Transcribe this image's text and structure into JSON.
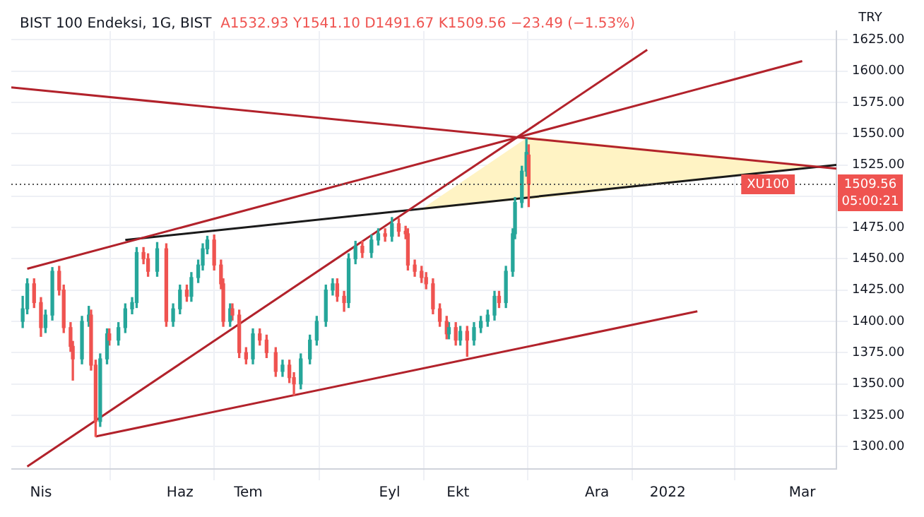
{
  "chart_data": {
    "type": "candlestick",
    "title": "BIST 100 Endeksi, 1G, BIST",
    "subtitle": "A1532.93 Y1541.10 D1491.67 K1509.56 −23.49 (−1.53%)",
    "x": [
      "2021-03-24",
      "2021-03-26",
      "2021-03-29",
      "2021-04-01",
      "2021-04-03",
      "2021-04-06",
      "2021-04-09",
      "2021-04-11",
      "2021-04-14",
      "2021-04-15",
      "2021-04-19",
      "2021-04-22",
      "2021-04-23",
      "2021-04-25",
      "2021-04-27",
      "2021-04-30",
      "2021-05-01",
      "2021-05-05",
      "2021-05-08",
      "2021-05-11",
      "2021-05-13",
      "2021-05-16",
      "2021-05-18",
      "2021-05-22",
      "2021-05-26",
      "2021-05-29",
      "2021-06-01",
      "2021-06-04",
      "2021-06-06",
      "2021-06-09",
      "2021-06-11",
      "2021-06-13",
      "2021-06-16",
      "2021-06-19",
      "2021-06-20",
      "2021-06-23",
      "2021-06-24",
      "2021-06-27",
      "2021-06-30",
      "2021-07-03",
      "2021-07-06",
      "2021-07-09",
      "2021-07-13",
      "2021-07-16",
      "2021-07-19",
      "2021-07-21",
      "2021-07-24",
      "2021-07-28",
      "2021-07-31",
      "2021-08-04",
      "2021-08-07",
      "2021-08-09",
      "2021-08-12",
      "2021-08-14",
      "2021-08-17",
      "2021-08-20",
      "2021-08-24",
      "2021-08-27",
      "2021-08-30",
      "2021-09-02",
      "2021-09-05",
      "2021-09-08",
      "2021-09-09",
      "2021-09-12",
      "2021-09-15",
      "2021-09-17",
      "2021-09-20",
      "2021-09-23",
      "2021-09-26",
      "2021-09-27",
      "2021-09-30",
      "2021-10-02",
      "2021-10-05",
      "2021-10-08",
      "2021-10-11",
      "2021-10-14",
      "2021-10-17",
      "2021-10-19",
      "2021-10-22",
      "2021-10-25",
      "2021-10-26",
      "2021-10-29",
      "2021-10-31",
      "2021-11-01"
    ],
    "ohlc": [
      [
        1400,
        1420,
        1395,
        1410
      ],
      [
        1410,
        1434,
        1406,
        1430
      ],
      [
        1430,
        1434,
        1411,
        1415
      ],
      [
        1415,
        1419,
        1388,
        1395
      ],
      [
        1395,
        1409,
        1391,
        1405
      ],
      [
        1405,
        1443,
        1401,
        1440
      ],
      [
        1440,
        1444,
        1421,
        1425
      ],
      [
        1425,
        1429,
        1391,
        1395
      ],
      [
        1395,
        1399,
        1376,
        1380
      ],
      [
        1380,
        1384,
        1353,
        1370
      ],
      [
        1370,
        1404,
        1366,
        1400
      ],
      [
        1400,
        1412,
        1396,
        1405
      ],
      [
        1405,
        1409,
        1361,
        1365
      ],
      [
        1365,
        1369,
        1308,
        1320
      ],
      [
        1320,
        1374,
        1316,
        1370
      ],
      [
        1370,
        1394,
        1366,
        1390
      ],
      [
        1390,
        1394,
        1381,
        1385
      ],
      [
        1385,
        1399,
        1381,
        1395
      ],
      [
        1395,
        1414,
        1391,
        1410
      ],
      [
        1410,
        1419,
        1406,
        1415
      ],
      [
        1415,
        1459,
        1411,
        1455
      ],
      [
        1455,
        1459,
        1446,
        1450
      ],
      [
        1450,
        1454,
        1436,
        1440
      ],
      [
        1440,
        1463,
        1436,
        1458
      ],
      [
        1458,
        1462,
        1396,
        1400
      ],
      [
        1400,
        1414,
        1396,
        1410
      ],
      [
        1410,
        1429,
        1406,
        1425
      ],
      [
        1425,
        1429,
        1416,
        1420
      ],
      [
        1420,
        1439,
        1416,
        1435
      ],
      [
        1435,
        1449,
        1431,
        1445
      ],
      [
        1445,
        1462,
        1441,
        1458
      ],
      [
        1458,
        1468,
        1454,
        1465
      ],
      [
        1465,
        1469,
        1441,
        1445
      ],
      [
        1445,
        1449,
        1426,
        1430
      ],
      [
        1430,
        1434,
        1396,
        1400
      ],
      [
        1400,
        1414,
        1396,
        1410
      ],
      [
        1410,
        1414,
        1401,
        1405
      ],
      [
        1405,
        1409,
        1371,
        1375
      ],
      [
        1375,
        1379,
        1366,
        1370
      ],
      [
        1370,
        1394,
        1366,
        1390
      ],
      [
        1390,
        1394,
        1381,
        1385
      ],
      [
        1385,
        1389,
        1371,
        1375
      ],
      [
        1375,
        1379,
        1356,
        1360
      ],
      [
        1360,
        1369,
        1356,
        1365
      ],
      [
        1365,
        1369,
        1351,
        1355
      ],
      [
        1355,
        1359,
        1341,
        1350
      ],
      [
        1350,
        1374,
        1346,
        1370
      ],
      [
        1370,
        1389,
        1366,
        1385
      ],
      [
        1385,
        1404,
        1381,
        1400
      ],
      [
        1400,
        1429,
        1396,
        1425
      ],
      [
        1425,
        1434,
        1421,
        1430
      ],
      [
        1430,
        1434,
        1416,
        1420
      ],
      [
        1420,
        1424,
        1408,
        1415
      ],
      [
        1415,
        1454,
        1411,
        1450
      ],
      [
        1450,
        1464,
        1446,
        1460
      ],
      [
        1460,
        1464,
        1451,
        1455
      ],
      [
        1455,
        1469,
        1451,
        1465
      ],
      [
        1465,
        1474,
        1461,
        1470
      ],
      [
        1470,
        1474,
        1464,
        1468
      ],
      [
        1468,
        1483,
        1464,
        1478
      ],
      [
        1478,
        1482,
        1468,
        1472
      ],
      [
        1472,
        1476,
        1466,
        1470
      ],
      [
        1470,
        1474,
        1441,
        1445
      ],
      [
        1445,
        1449,
        1436,
        1440
      ],
      [
        1440,
        1444,
        1431,
        1435
      ],
      [
        1435,
        1439,
        1426,
        1430
      ],
      [
        1430,
        1434,
        1406,
        1410
      ],
      [
        1410,
        1414,
        1396,
        1400
      ],
      [
        1400,
        1404,
        1386,
        1390
      ],
      [
        1390,
        1399,
        1386,
        1395
      ],
      [
        1395,
        1399,
        1381,
        1385
      ],
      [
        1385,
        1396,
        1381,
        1392
      ],
      [
        1392,
        1396,
        1372,
        1385
      ],
      [
        1385,
        1399,
        1381,
        1395
      ],
      [
        1395,
        1404,
        1391,
        1400
      ],
      [
        1400,
        1409,
        1396,
        1405
      ],
      [
        1405,
        1424,
        1401,
        1420
      ],
      [
        1420,
        1424,
        1411,
        1415
      ],
      [
        1415,
        1444,
        1411,
        1440
      ],
      [
        1440,
        1474,
        1436,
        1470
      ],
      [
        1470,
        1499,
        1466,
        1495
      ],
      [
        1495,
        1524,
        1491,
        1520
      ],
      [
        1520,
        1546,
        1516,
        1535
      ],
      [
        1532.93,
        1541.1,
        1491.67,
        1509.56
      ]
    ],
    "colors": [
      "#26a69a",
      "#26a69a",
      "#ef5350",
      "#ef5350",
      "#26a69a",
      "#26a69a",
      "#ef5350",
      "#ef5350",
      "#ef5350",
      "#ef5350",
      "#26a69a",
      "#26a69a",
      "#ef5350",
      "#ef5350",
      "#26a69a",
      "#26a69a",
      "#ef5350",
      "#26a69a",
      "#26a69a",
      "#26a69a",
      "#26a69a",
      "#ef5350",
      "#ef5350",
      "#26a69a",
      "#ef5350",
      "#26a69a",
      "#26a69a",
      "#ef5350",
      "#26a69a",
      "#26a69a",
      "#26a69a",
      "#26a69a",
      "#ef5350",
      "#ef5350",
      "#ef5350",
      "#26a69a",
      "#ef5350",
      "#ef5350",
      "#ef5350",
      "#26a69a",
      "#ef5350",
      "#ef5350",
      "#ef5350",
      "#26a69a",
      "#ef5350",
      "#ef5350",
      "#26a69a",
      "#26a69a",
      "#26a69a",
      "#26a69a",
      "#26a69a",
      "#ef5350",
      "#ef5350",
      "#26a69a",
      "#26a69a",
      "#ef5350",
      "#26a69a",
      "#26a69a",
      "#ef5350",
      "#26a69a",
      "#ef5350",
      "#ef5350",
      "#ef5350",
      "#ef5350",
      "#ef5350",
      "#ef5350",
      "#ef5350",
      "#ef5350",
      "#ef5350",
      "#26a69a",
      "#ef5350",
      "#26a69a",
      "#ef5350",
      "#26a69a",
      "#26a69a",
      "#26a69a",
      "#26a69a",
      "#ef5350",
      "#26a69a",
      "#26a69a",
      "#26a69a",
      "#26a69a",
      "#26a69a",
      "#ef5350"
    ],
    "series": [
      {
        "type": "area",
        "color": "#fff3c4",
        "x": [
          "2021-09-15",
          "2021-11-01",
          "2022-03-07",
          "2021-11-01"
        ],
        "values": [
          1489,
          1547,
          1524,
          1498
        ]
      },
      {
        "type": "line",
        "color": "#b2222b",
        "x": [
          "2021-03-26",
          "2022-03-01"
        ],
        "values": [
          1442,
          1608
        ]
      },
      {
        "type": "line",
        "color": "#b2222b",
        "x": [
          "2021-03-19",
          "2022-03-16"
        ],
        "values": [
          1587,
          1522
        ]
      },
      {
        "type": "line",
        "color": "#b2222b",
        "x": [
          "2021-03-26",
          "2021-12-23"
        ],
        "values": [
          1284,
          1617
        ]
      },
      {
        "type": "line",
        "color": "#b2222b",
        "x": [
          "2021-04-25",
          "2022-01-14"
        ],
        "values": [
          1308,
          1408
        ]
      },
      {
        "type": "line",
        "color": "#1a1a1a",
        "x": [
          "2021-05-08",
          "2022-03-16"
        ],
        "values": [
          1465,
          1525
        ]
      }
    ],
    "xlim": [
      "2021-03-19",
      "2022-03-16"
    ],
    "xticks": [
      {
        "value": "2021-04-01",
        "label": "Nis"
      },
      {
        "value": "2021-06-01",
        "label": "Haz"
      },
      {
        "value": "2021-07-01",
        "label": "Tem"
      },
      {
        "value": "2021-09-01",
        "label": "Eyl"
      },
      {
        "value": "2021-10-01",
        "label": "Ekt"
      },
      {
        "value": "2021-12-01",
        "label": "Ara"
      },
      {
        "value": "2022-01-01",
        "label": "2022"
      },
      {
        "value": "2022-03-01",
        "label": "Mar"
      }
    ],
    "ylim": [
      1282,
      1632
    ],
    "yticks": [
      {
        "value": 1300,
        "label": "1300.00"
      },
      {
        "value": 1325,
        "label": "1325.00"
      },
      {
        "value": 1350,
        "label": "1350.00"
      },
      {
        "value": 1375,
        "label": "1375.00"
      },
      {
        "value": 1400,
        "label": "1400.00"
      },
      {
        "value": 1425,
        "label": "1425.00"
      },
      {
        "value": 1450,
        "label": "1450.00"
      },
      {
        "value": 1475,
        "label": "1475.00"
      },
      {
        "value": 1500,
        "label": null
      },
      {
        "value": 1525,
        "label": "1525.00"
      },
      {
        "value": 1550,
        "label": "1550.00"
      },
      {
        "value": 1575,
        "label": "1575.00"
      },
      {
        "value": 1600,
        "label": "1600.00"
      },
      {
        "value": 1625,
        "label": "1625.00"
      }
    ],
    "ref_lines": [
      {
        "axis": "y",
        "value": 1509.56,
        "label": "1509.56",
        "color": "#555555",
        "line_style": "dotted"
      }
    ],
    "annotations": [
      {
        "text": "XU100",
        "x": "2022-02-14",
        "y": 1509.56
      },
      "05:00:21",
      "TRY"
    ],
    "grid": true,
    "legend": false
  }
}
